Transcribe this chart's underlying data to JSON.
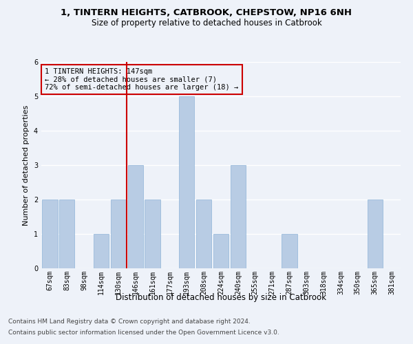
{
  "title": "1, TINTERN HEIGHTS, CATBROOK, CHEPSTOW, NP16 6NH",
  "subtitle": "Size of property relative to detached houses in Catbrook",
  "xlabel": "Distribution of detached houses by size in Catbrook",
  "ylabel": "Number of detached properties",
  "categories": [
    "67sqm",
    "83sqm",
    "98sqm",
    "114sqm",
    "130sqm",
    "146sqm",
    "161sqm",
    "177sqm",
    "193sqm",
    "208sqm",
    "224sqm",
    "240sqm",
    "255sqm",
    "271sqm",
    "287sqm",
    "303sqm",
    "318sqm",
    "334sqm",
    "350sqm",
    "365sqm",
    "381sqm"
  ],
  "values": [
    2,
    2,
    0,
    1,
    2,
    3,
    2,
    0,
    5,
    2,
    1,
    3,
    0,
    0,
    1,
    0,
    0,
    0,
    0,
    2,
    0
  ],
  "bar_color": "#b8cce4",
  "bar_edge_color": "#8eb4d8",
  "property_line_index": 4.5,
  "annotation_title": "1 TINTERN HEIGHTS: 147sqm",
  "annotation_line1": "← 28% of detached houses are smaller (7)",
  "annotation_line2": "72% of semi-detached houses are larger (18) →",
  "annotation_box_color": "#cc0000",
  "ylim": [
    0,
    6
  ],
  "yticks": [
    0,
    1,
    2,
    3,
    4,
    5,
    6
  ],
  "footnote1": "Contains HM Land Registry data © Crown copyright and database right 2024.",
  "footnote2": "Contains public sector information licensed under the Open Government Licence v3.0.",
  "background_color": "#eef2f9",
  "grid_color": "#ffffff",
  "title_fontsize": 9.5,
  "subtitle_fontsize": 8.5,
  "xlabel_fontsize": 8.5,
  "ylabel_fontsize": 8,
  "tick_fontsize": 7,
  "annotation_fontsize": 7.5,
  "footnote_fontsize": 6.5
}
